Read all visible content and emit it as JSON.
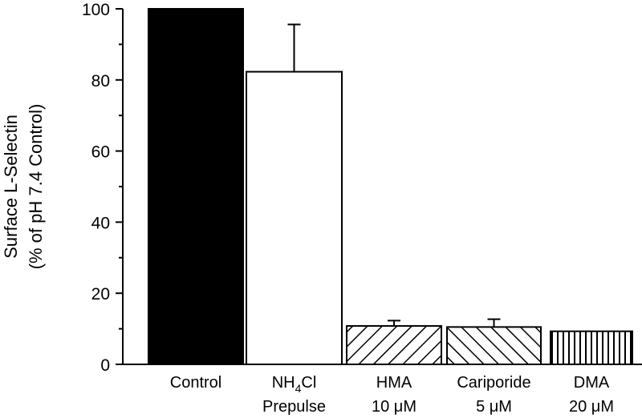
{
  "chart_data": {
    "type": "bar",
    "categories": [
      {
        "line1": "Control",
        "line2": ""
      },
      {
        "line1": "NH4Cl",
        "line2": "Prepulse"
      },
      {
        "line1": "HMA",
        "line2": "10 μM"
      },
      {
        "line1": "Cariporide",
        "line2": "5 μM"
      },
      {
        "line1": "DMA",
        "line2": "20 μM"
      }
    ],
    "values": [
      100,
      82.3,
      10.8,
      10.5,
      9.3
    ],
    "errors": [
      0,
      13.3,
      1.5,
      2.2,
      0
    ],
    "fills": [
      "solid-black",
      "white",
      "hatch-forward",
      "hatch-back",
      "hatch-vertical"
    ],
    "ylabel_line1": "Surface L-Selectin",
    "ylabel_line2": "(% of pH 7.4 Control)",
    "ylim": [
      0,
      100
    ],
    "yticks": [
      0,
      20,
      40,
      60,
      80,
      100
    ],
    "grid": false,
    "legend": "none"
  }
}
